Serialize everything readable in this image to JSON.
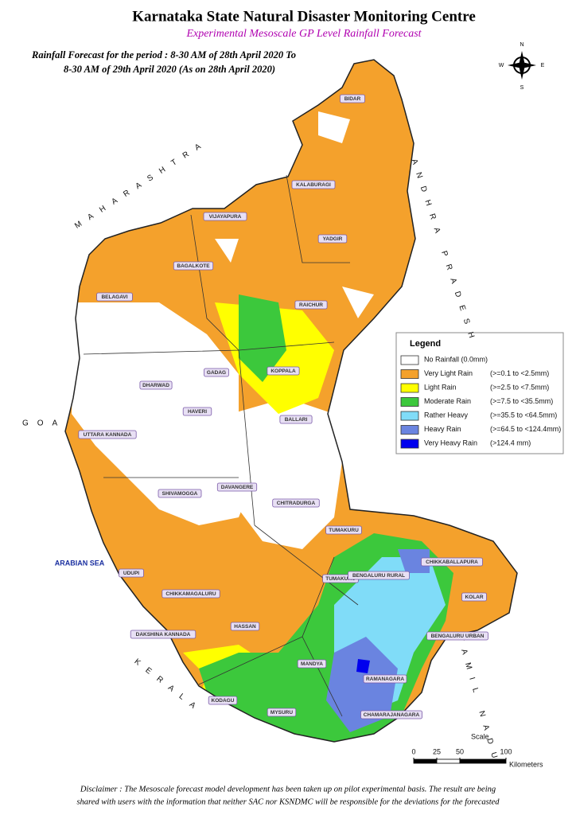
{
  "header": {
    "title": "Karnataka State Natural Disaster Monitoring Centre",
    "subtitle": "Experimental Mesoscale GP Level Rainfall Forecast",
    "period_lines": [
      "Rainfall Forecast for the period : 8-30 AM of 28th April 2020 To",
      "8-30 AM of 29th April 2020 (As on 28th April 2020)"
    ]
  },
  "compass": {
    "north": "N",
    "east": "E",
    "south": "S",
    "west": "W"
  },
  "neighbours": [
    "MAHARASHTRA",
    "ANDHRA PRADESH",
    "TAMIL NADU",
    "KERALA",
    "GOA",
    "ARABIAN SEA"
  ],
  "districts": [
    "BIDAR",
    "KALABURAGI",
    "VIJAYAPURA",
    "YADGIR",
    "BAGALKOTE",
    "BELAGAVI",
    "RAICHUR",
    "KOPPALA",
    "GADAG",
    "DHARWAD",
    "BALLARI",
    "HAVERI",
    "UTTARA KANNADA",
    "DAVANGERE",
    "CHITRADURGA",
    "TUMAKURU",
    "SHIVAMOGGA",
    "UDUPI",
    "TUMAKURU",
    "CHIKKABALLAPURA",
    "BENGALURU RURAL",
    "KOLAR",
    "CHIKKAMAGALURU",
    "BENGALURU URBAN",
    "HASSAN",
    "DAKSHINA KANNADA",
    "MANDYA",
    "RAMANAGARA",
    "KODAGU",
    "MYSURU",
    "CHAMARAJANAGARA"
  ],
  "legend": {
    "title": "Legend",
    "items": [
      {
        "name": "No Rainfall (0.0mm)",
        "range": null,
        "color": "#ffffff"
      },
      {
        "name": "Very Light Rain",
        "range": "(>=0.1 to <2.5mm)",
        "color": "#f4a12c"
      },
      {
        "name": "Light Rain",
        "range": "(>=2.5 to <7.5mm)",
        "color": "#ffff00"
      },
      {
        "name": "Moderate Rain",
        "range": "(>=7.5 to <35.5mm)",
        "color": "#3cc83c"
      },
      {
        "name": "Rather Heavy",
        "range": "(>=35.5 to <64.5mm)",
        "color": "#80dcf8"
      },
      {
        "name": "Heavy Rain",
        "range": "(>=64.5 to <124.4mm)",
        "color": "#6a84e0"
      },
      {
        "name": "Very Heavy Rain",
        "range": "(>124.4 mm)",
        "color": "#0000ee"
      }
    ]
  },
  "scale": {
    "label": "Scale",
    "ticks": [
      0,
      25,
      50,
      100
    ],
    "unit": "Kilometers"
  },
  "disclaimer": [
    "Disclaimer : The Mesoscale forecast model development has been taken up on pilot experimental basis. The result are being",
    "shared with users with the information that neither SAC nor KSNDMC will be responsible  for the deviations for the forecasted"
  ]
}
